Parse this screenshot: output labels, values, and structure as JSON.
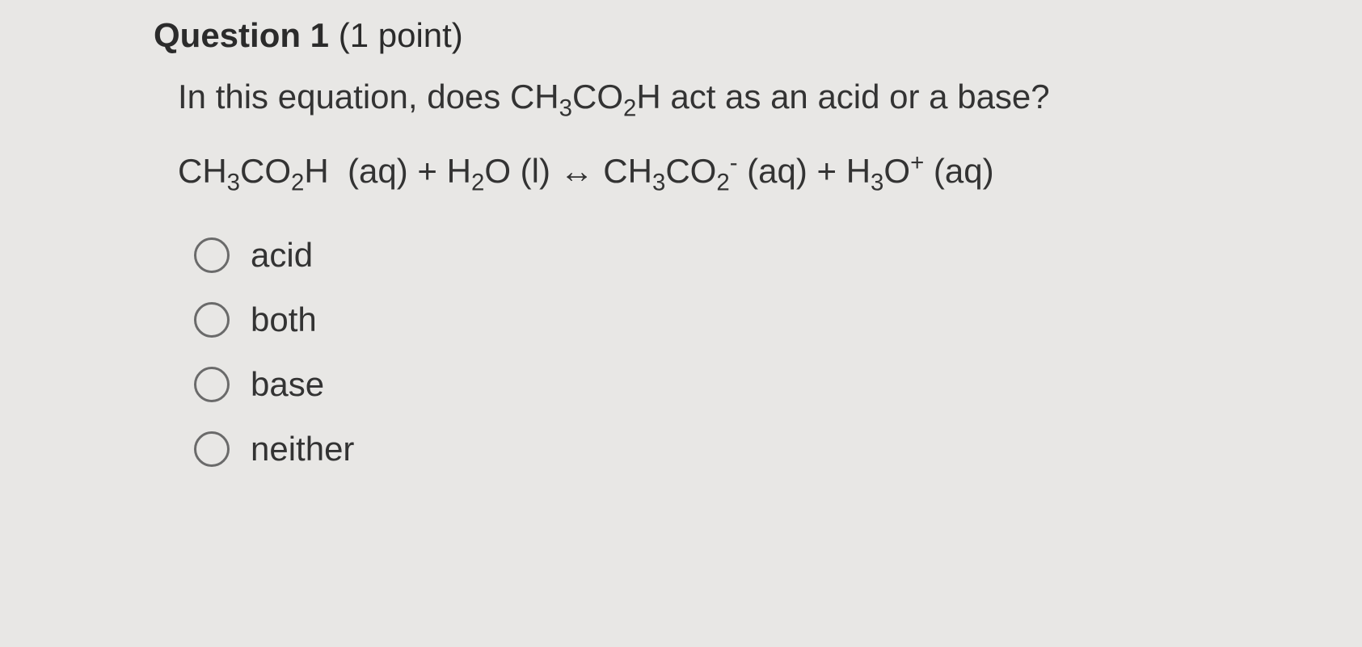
{
  "question": {
    "number_label": "Question 1",
    "points_label": "(1 point)",
    "prompt_pre": "In this equation, does CH",
    "prompt_sub1": "3",
    "prompt_mid1": "CO",
    "prompt_sub2": "2",
    "prompt_mid2": "H act as an acid or a base?",
    "equation_html": "CH<sub>3</sub>CO<sub>2</sub>H &nbsp;(aq) + H<sub>2</sub>O (l) ↔ CH<sub>3</sub>CO<sub>2</sub><sup>-</sup> (aq) + H<sub>3</sub>O<sup>+</sup> (aq)"
  },
  "options": [
    {
      "label": "acid"
    },
    {
      "label": "both"
    },
    {
      "label": "base"
    },
    {
      "label": "neither"
    }
  ],
  "colors": {
    "background": "#e8e7e5",
    "text": "#2b2b2b",
    "radio_border": "#6a6a6a"
  },
  "typography": {
    "heading_fontsize": 42,
    "body_fontsize": 42,
    "font_family": "Arial"
  }
}
